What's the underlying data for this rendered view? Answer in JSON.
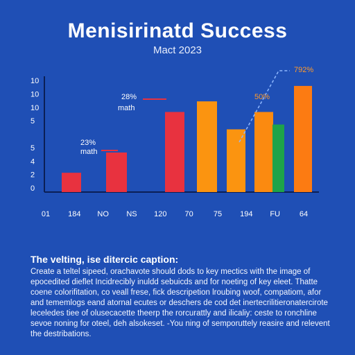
{
  "title": "Menisirinatd Success",
  "subtitle": "Mact 2023",
  "caption": {
    "heading": "The velting, ise ditercic caption:",
    "body": "Create a teltel sipeed, orachavote should dods to key mectics with the image of epocedited dieflet Incidrecibly inuldd sebuicds and for noeting of key eleet. Thatte coene colorifitation, co veall frese, fick descripetion lroubing woof, compatiom, afor and tememlogs eand atornal ecutes or deschers de cod det inertecrilitieronatercirote leceledes tiee of olusecacette theerp the rorcurattly and ilicaliy: ceste to ronchline sevoe noning for oteel, deh alsokeset. -You ning of semporuttely reasire and relevent the destribations."
  },
  "chart_data": {
    "type": "bar",
    "title": "",
    "xlabel": "",
    "ylabel": "",
    "y_tick_labels": [
      "0",
      "2",
      "4",
      "5",
      "",
      "5",
      "10",
      "10",
      "10"
    ],
    "x_tick_labels": [
      "01",
      "184",
      "NO",
      "NS",
      "120",
      "70",
      "75",
      "194",
      "FU",
      "64"
    ],
    "bars": [
      {
        "category": "184",
        "value": 2.0,
        "color": "#e8323f"
      },
      {
        "category": "NS",
        "value": 4.1,
        "color": "#e8323f"
      },
      {
        "category": "70",
        "value": 8.3,
        "color": "#e8323f"
      },
      {
        "category": "75",
        "value": 9.4,
        "color": "#fb9410"
      },
      {
        "category": "194",
        "value": 6.5,
        "color": "#fb9410"
      },
      {
        "category": "FU",
        "value": 8.3,
        "color": "#fb8a10"
      },
      {
        "category": "FU",
        "value": 7.0,
        "color": "#1ea34a"
      },
      {
        "category": "64",
        "value": 11.0,
        "color": "#fc7b12"
      }
    ],
    "annotations": [
      {
        "label": "23%",
        "sublabel": "math",
        "bar_index": 1
      },
      {
        "label": "28%",
        "sublabel": "math",
        "bar_index": 2
      },
      {
        "label": "50%",
        "sublabel": "",
        "bar_index": 5
      },
      {
        "label": "792%",
        "sublabel": "",
        "bar_index": 7
      }
    ],
    "ylim": [
      0,
      12
    ],
    "grid": false,
    "legend": "none"
  },
  "colors": {
    "background": "#1f4fb5",
    "axis": "#0b1f55",
    "annotation_red": "#e8323f",
    "annotation_orange": "#ff9a2a",
    "trend": "#8fb8ff"
  }
}
